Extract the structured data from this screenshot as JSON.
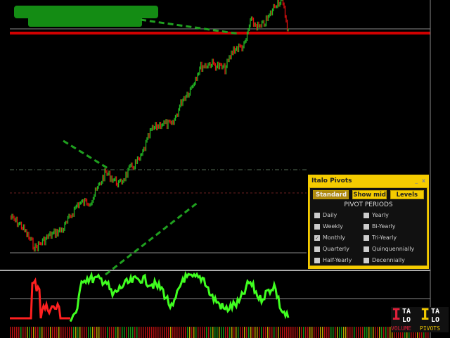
{
  "panel": {
    "title": "Italo Pivots",
    "minimize": "_",
    "close": "x",
    "mode_select": "Standard",
    "show_mid": "Show mid",
    "levels": "Levels",
    "heading": "PIVOT PERIODS",
    "periods": [
      {
        "label": "Daily",
        "checked": false
      },
      {
        "label": "Yearly",
        "checked": false
      },
      {
        "label": "Weekly",
        "checked": false
      },
      {
        "label": "Bi-Yearly",
        "checked": false
      },
      {
        "label": "Monthly",
        "checked": true
      },
      {
        "label": "Tri-Yearly",
        "checked": false
      },
      {
        "label": "Quarterly",
        "checked": false
      },
      {
        "label": "Quinquennially",
        "checked": false
      },
      {
        "label": "Half-Yearly",
        "checked": false
      },
      {
        "label": "Decennially",
        "checked": false
      }
    ]
  },
  "logos": [
    {
      "i": "I",
      "ta": "TA",
      "lo": "LO",
      "sub": "VOLUME",
      "color": "#e0203a"
    },
    {
      "i": "I",
      "ta": "TA",
      "lo": "LO",
      "sub": "PIVOTS",
      "color": "#f0c800"
    }
  ],
  "colors": {
    "bull": "#22b822",
    "bear": "#e01010",
    "pivot_line": "#e01010",
    "trend": "#1fa01f",
    "oscillator": "#40ff20",
    "panel": "#f5cc00"
  }
}
